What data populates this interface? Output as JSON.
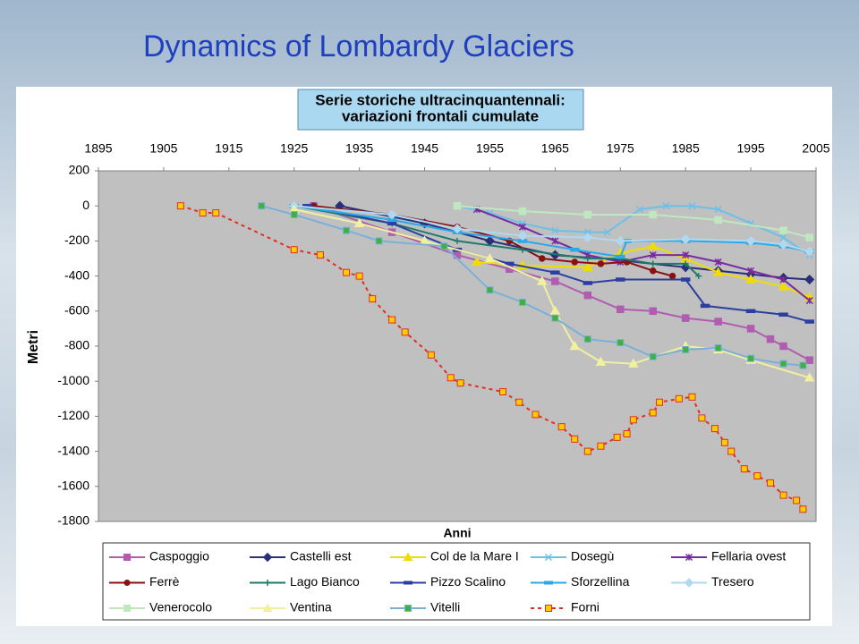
{
  "chart_data": {
    "type": "line",
    "title": "Dynamics of Lombardy Glaciers",
    "subtitle": [
      "Serie storiche ultracinquantennali:",
      "variazioni frontali cumulate"
    ],
    "x_label": "Anni",
    "y_label": "Metri",
    "xlim": [
      1895,
      2005
    ],
    "xticks": [
      1895,
      1905,
      1915,
      1925,
      1935,
      1945,
      1955,
      1965,
      1975,
      1985,
      1995,
      2005
    ],
    "ylim": [
      -1800,
      200
    ],
    "yticks": [
      200,
      0,
      -200,
      -400,
      -600,
      -800,
      -1000,
      -1200,
      -1400,
      -1600,
      -1800
    ],
    "grid": false,
    "series": [
      {
        "name": "Caspoggio",
        "color": "#b05cb0",
        "marker": "square",
        "x": [
          1928,
          1940,
          1950,
          1958,
          1965,
          1970,
          1975,
          1980,
          1985,
          1990,
          1995,
          1998,
          2000,
          2004
        ],
        "values": [
          0,
          -150,
          -280,
          -360,
          -430,
          -510,
          -590,
          -600,
          -640,
          -660,
          -700,
          -760,
          -800,
          -880
        ]
      },
      {
        "name": "Castelli est",
        "color": "#2b2f7a",
        "marker": "diamond",
        "x": [
          1932,
          1945,
          1955,
          1965,
          1975,
          1985,
          1990,
          1995,
          2000,
          2004
        ],
        "values": [
          0,
          -100,
          -200,
          -280,
          -310,
          -350,
          -370,
          -390,
          -410,
          -420
        ]
      },
      {
        "name": "Col de la Mare I",
        "color": "#f0dc00",
        "marker": "triangle",
        "x": [
          1953,
          1960,
          1970,
          1975,
          1980,
          1985,
          1990,
          1995,
          2000,
          2004
        ],
        "values": [
          -320,
          -340,
          -350,
          -270,
          -230,
          -300,
          -380,
          -420,
          -460,
          -520
        ]
      },
      {
        "name": "Dosegù",
        "color": "#6cc0e8",
        "marker": "x",
        "x": [
          1950,
          1955,
          1960,
          1965,
          1970,
          1973,
          1978,
          1982,
          1986,
          1990,
          1995,
          2000,
          2004
        ],
        "values": [
          0,
          -40,
          -100,
          -140,
          -150,
          -150,
          -20,
          0,
          0,
          -20,
          -100,
          -180,
          -280
        ]
      },
      {
        "name": "Fellaria ovest",
        "color": "#7a2aa0",
        "marker": "star",
        "x": [
          1953,
          1960,
          1965,
          1970,
          1975,
          1980,
          1985,
          1990,
          1995,
          2000,
          2004
        ],
        "values": [
          -20,
          -120,
          -200,
          -280,
          -320,
          -280,
          -280,
          -320,
          -370,
          -420,
          -540
        ]
      },
      {
        "name": "Ferrè",
        "color": "#8b1010",
        "marker": "circle",
        "x": [
          1928,
          1940,
          1950,
          1958,
          1963,
          1968,
          1972,
          1976,
          1980,
          1983
        ],
        "values": [
          0,
          -50,
          -120,
          -200,
          -300,
          -320,
          -330,
          -320,
          -370,
          -400
        ]
      },
      {
        "name": "Lago Bianco",
        "color": "#1e7a6a",
        "marker": "plus",
        "x": [
          1925,
          1940,
          1950,
          1960,
          1970,
          1975,
          1980,
          1985,
          1987
        ],
        "values": [
          0,
          -100,
          -200,
          -250,
          -300,
          -300,
          -330,
          -330,
          -400
        ]
      },
      {
        "name": "Pizzo Scalino",
        "color": "#2a3fa0",
        "marker": "dash",
        "x": [
          1927,
          1940,
          1950,
          1958,
          1965,
          1970,
          1975,
          1985,
          1988,
          1995,
          2000,
          2004
        ],
        "values": [
          0,
          -100,
          -250,
          -330,
          -380,
          -440,
          -420,
          -420,
          -570,
          -600,
          -620,
          -660
        ]
      },
      {
        "name": "Sforzellina",
        "color": "#2aa8e8",
        "marker": "dash",
        "x": [
          1925,
          1940,
          1950,
          1960,
          1968,
          1975,
          1976,
          1985,
          1995,
          2000,
          2004
        ],
        "values": [
          0,
          -80,
          -150,
          -200,
          -250,
          -290,
          -200,
          -200,
          -210,
          -230,
          -260
        ]
      },
      {
        "name": "Tresero",
        "color": "#b0d8f0",
        "marker": "diamond",
        "x": [
          1925,
          1940,
          1950,
          1960,
          1970,
          1975,
          1985,
          1995,
          2000,
          2004
        ],
        "values": [
          0,
          -50,
          -130,
          -170,
          -180,
          -200,
          -190,
          -200,
          -220,
          -260
        ]
      },
      {
        "name": "Venerocolo",
        "color": "#c0e8c0",
        "marker": "square",
        "x": [
          1950,
          1960,
          1970,
          1980,
          1990,
          2000,
          2004
        ],
        "values": [
          0,
          -30,
          -50,
          -50,
          -80,
          -140,
          -180
        ]
      },
      {
        "name": "Ventina",
        "color": "#f0f0a0",
        "marker": "triangle",
        "x": [
          1925,
          1935,
          1945,
          1955,
          1963,
          1965,
          1968,
          1972,
          1977,
          1985,
          1990,
          1995,
          2004
        ],
        "values": [
          -20,
          -100,
          -200,
          -300,
          -430,
          -600,
          -800,
          -890,
          -900,
          -800,
          -820,
          -880,
          -980
        ]
      },
      {
        "name": "Vitelli",
        "color": "#7ab0d8",
        "marker_color": "#40b040",
        "marker": "square",
        "x": [
          1920,
          1925,
          1933,
          1938,
          1948,
          1955,
          1960,
          1965,
          1970,
          1975,
          1980,
          1985,
          1990,
          1995,
          2000,
          2003
        ],
        "values": [
          0,
          -50,
          -140,
          -200,
          -230,
          -480,
          -550,
          -640,
          -760,
          -780,
          -860,
          -820,
          -810,
          -870,
          -900,
          -910
        ]
      },
      {
        "name": "Forni",
        "color": "#e03020",
        "marker_color": "#ffcc00",
        "marker": "square",
        "dashed": true,
        "x": [
          1907.6,
          1911,
          1913,
          1925,
          1929,
          1933,
          1935,
          1937,
          1940,
          1942,
          1946,
          1949,
          1950.5,
          1957,
          1959.5,
          1962,
          1966,
          1968,
          1970,
          1972,
          1974.5,
          1976,
          1977,
          1980,
          1981,
          1984,
          1986,
          1987.5,
          1989.5,
          1991,
          1992,
          1994,
          1996,
          1998,
          2000,
          2002,
          2003
        ],
        "values": [
          0,
          -40,
          -40,
          -250,
          -280,
          -380,
          -400,
          -530,
          -650,
          -720,
          -850,
          -980,
          -1010,
          -1060,
          -1120,
          -1190,
          -1260,
          -1330,
          -1400,
          -1370,
          -1320,
          -1300,
          -1220,
          -1180,
          -1120,
          -1100,
          -1090,
          -1210,
          -1270,
          -1350,
          -1400,
          -1500,
          -1540,
          -1580,
          -1650,
          -1680,
          -1730
        ]
      }
    ]
  }
}
